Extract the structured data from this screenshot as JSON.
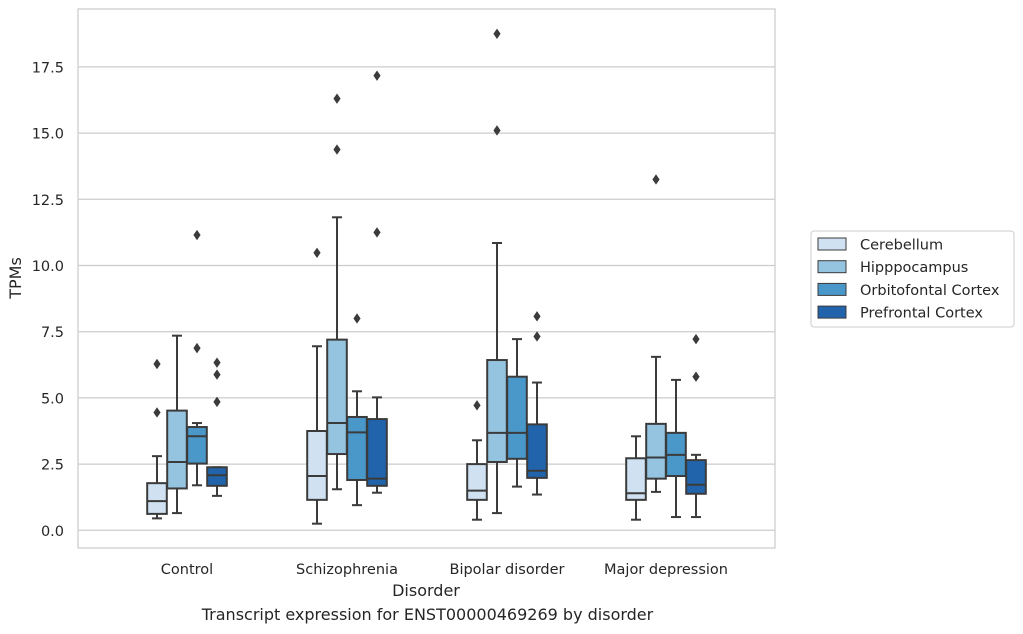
{
  "chart_data": {
    "type": "box",
    "caption": "Transcript expression for ENST00000469269 by disorder",
    "xlabel": "Disorder",
    "ylabel": "TPMs",
    "ylim": [
      -0.6,
      19.7
    ],
    "yticks": [
      0.0,
      2.5,
      5.0,
      7.5,
      10.0,
      12.5,
      15.0,
      17.5
    ],
    "ytick_labels": [
      "0.0",
      "2.5",
      "5.0",
      "7.5",
      "10.0",
      "12.5",
      "15.0",
      "17.5"
    ],
    "categories": [
      "Control",
      "Schizophrenia",
      "Bipolar disorder",
      "Major depression"
    ],
    "grid": "horizontal",
    "legend_position": "right",
    "series": [
      {
        "name": "Cerebellum",
        "color": "#d0e1f2",
        "boxes": [
          {
            "whislo": 0.45,
            "q1": 0.62,
            "med": 1.1,
            "q3": 1.78,
            "whishi": 2.8,
            "fliers": [
              4.45,
              6.28
            ]
          },
          {
            "whislo": 0.25,
            "q1": 1.15,
            "med": 2.05,
            "q3": 3.75,
            "whishi": 6.95,
            "fliers": [
              10.48
            ]
          },
          {
            "whislo": 0.4,
            "q1": 1.15,
            "med": 1.5,
            "q3": 2.5,
            "whishi": 3.4,
            "fliers": [
              4.72
            ]
          },
          {
            "whislo": 0.4,
            "q1": 1.15,
            "med": 1.4,
            "q3": 2.72,
            "whishi": 3.55,
            "fliers": []
          }
        ]
      },
      {
        "name": "Hipppocampus",
        "color": "#94c4df",
        "boxes": [
          {
            "whislo": 0.65,
            "q1": 1.58,
            "med": 2.58,
            "q3": 4.52,
            "whishi": 7.35,
            "fliers": []
          },
          {
            "whislo": 1.55,
            "q1": 2.88,
            "med": 4.05,
            "q3": 7.2,
            "whishi": 11.82,
            "fliers": [
              14.38,
              16.3
            ]
          },
          {
            "whislo": 0.65,
            "q1": 2.58,
            "med": 3.68,
            "q3": 6.43,
            "whishi": 10.85,
            "fliers": [
              15.1,
              18.75
            ]
          },
          {
            "whislo": 1.45,
            "q1": 1.95,
            "med": 2.75,
            "q3": 4.02,
            "whishi": 6.55,
            "fliers": [
              13.25
            ]
          }
        ]
      },
      {
        "name": "Orbitofontal Cortex",
        "color": "#4a98c9",
        "boxes": [
          {
            "whislo": 1.7,
            "q1": 2.52,
            "med": 3.55,
            "q3": 3.9,
            "whishi": 4.05,
            "fliers": [
              6.88,
              11.15
            ]
          },
          {
            "whislo": 0.95,
            "q1": 1.9,
            "med": 3.7,
            "q3": 4.28,
            "whishi": 5.25,
            "fliers": [
              8.0
            ]
          },
          {
            "whislo": 1.65,
            "q1": 2.7,
            "med": 3.68,
            "q3": 5.8,
            "whishi": 7.22,
            "fliers": []
          },
          {
            "whislo": 0.5,
            "q1": 2.05,
            "med": 2.85,
            "q3": 3.68,
            "whishi": 5.68,
            "fliers": []
          }
        ]
      },
      {
        "name": "Prefrontal Cortex",
        "color": "#2164ab",
        "boxes": [
          {
            "whislo": 1.3,
            "q1": 1.68,
            "med": 2.08,
            "q3": 2.38,
            "whishi": 2.38,
            "fliers": [
              4.85,
              5.88,
              6.33
            ]
          },
          {
            "whislo": 1.42,
            "q1": 1.68,
            "med": 1.95,
            "q3": 4.2,
            "whishi": 5.02,
            "fliers": [
              11.25,
              17.17
            ]
          },
          {
            "whislo": 1.35,
            "q1": 1.98,
            "med": 2.25,
            "q3": 4.0,
            "whishi": 5.58,
            "fliers": [
              7.32,
              8.08
            ]
          },
          {
            "whislo": 0.5,
            "q1": 1.38,
            "med": 1.72,
            "q3": 2.65,
            "whishi": 2.85,
            "fliers": [
              5.8,
              7.22
            ]
          }
        ]
      }
    ]
  }
}
